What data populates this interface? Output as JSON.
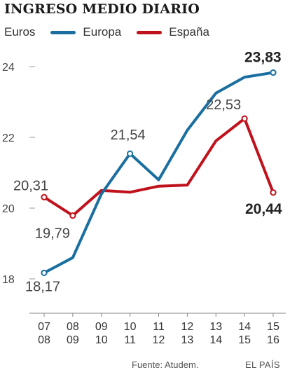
{
  "title": "INGRESO MEDIO DIARIO",
  "legend": {
    "unit": "Euros",
    "series": [
      {
        "name": "Europa",
        "color": "#1a6fa0"
      },
      {
        "name": "España",
        "color": "#c0121c"
      }
    ]
  },
  "source": "Fuente: Atudem.",
  "brand": "EL PAÍS",
  "chart_data": {
    "type": "line",
    "title": "INGRESO MEDIO DIARIO",
    "ylabel": "Euros",
    "xlabel": "",
    "ylim": [
      17,
      24.5
    ],
    "yticks": [
      18,
      20,
      22,
      24
    ],
    "grid": false,
    "legend_position": "top",
    "categories": [
      "07\n08",
      "08\n09",
      "09\n10",
      "10\n11",
      "11\n12",
      "12\n13",
      "13\n14",
      "14\n15",
      "15\n16"
    ],
    "series": [
      {
        "name": "Europa",
        "color": "#1a6fa0",
        "values": [
          18.17,
          18.6,
          20.4,
          21.54,
          20.8,
          22.2,
          23.25,
          23.7,
          23.83
        ],
        "labels": [
          {
            "index": 0,
            "text": "18,17",
            "bold": false
          },
          {
            "index": 3,
            "text": "21,54",
            "bold": false
          },
          {
            "index": 8,
            "text": "23,83",
            "bold": true
          }
        ]
      },
      {
        "name": "España",
        "color": "#c0121c",
        "values": [
          20.31,
          19.79,
          20.5,
          20.45,
          20.62,
          20.65,
          21.9,
          22.53,
          20.44
        ],
        "labels": [
          {
            "index": 0,
            "text": "20,31",
            "bold": false
          },
          {
            "index": 1,
            "text": "19,79",
            "bold": false
          },
          {
            "index": 7,
            "text": "22,53",
            "bold": false
          },
          {
            "index": 8,
            "text": "20,44",
            "bold": true
          }
        ]
      }
    ]
  }
}
